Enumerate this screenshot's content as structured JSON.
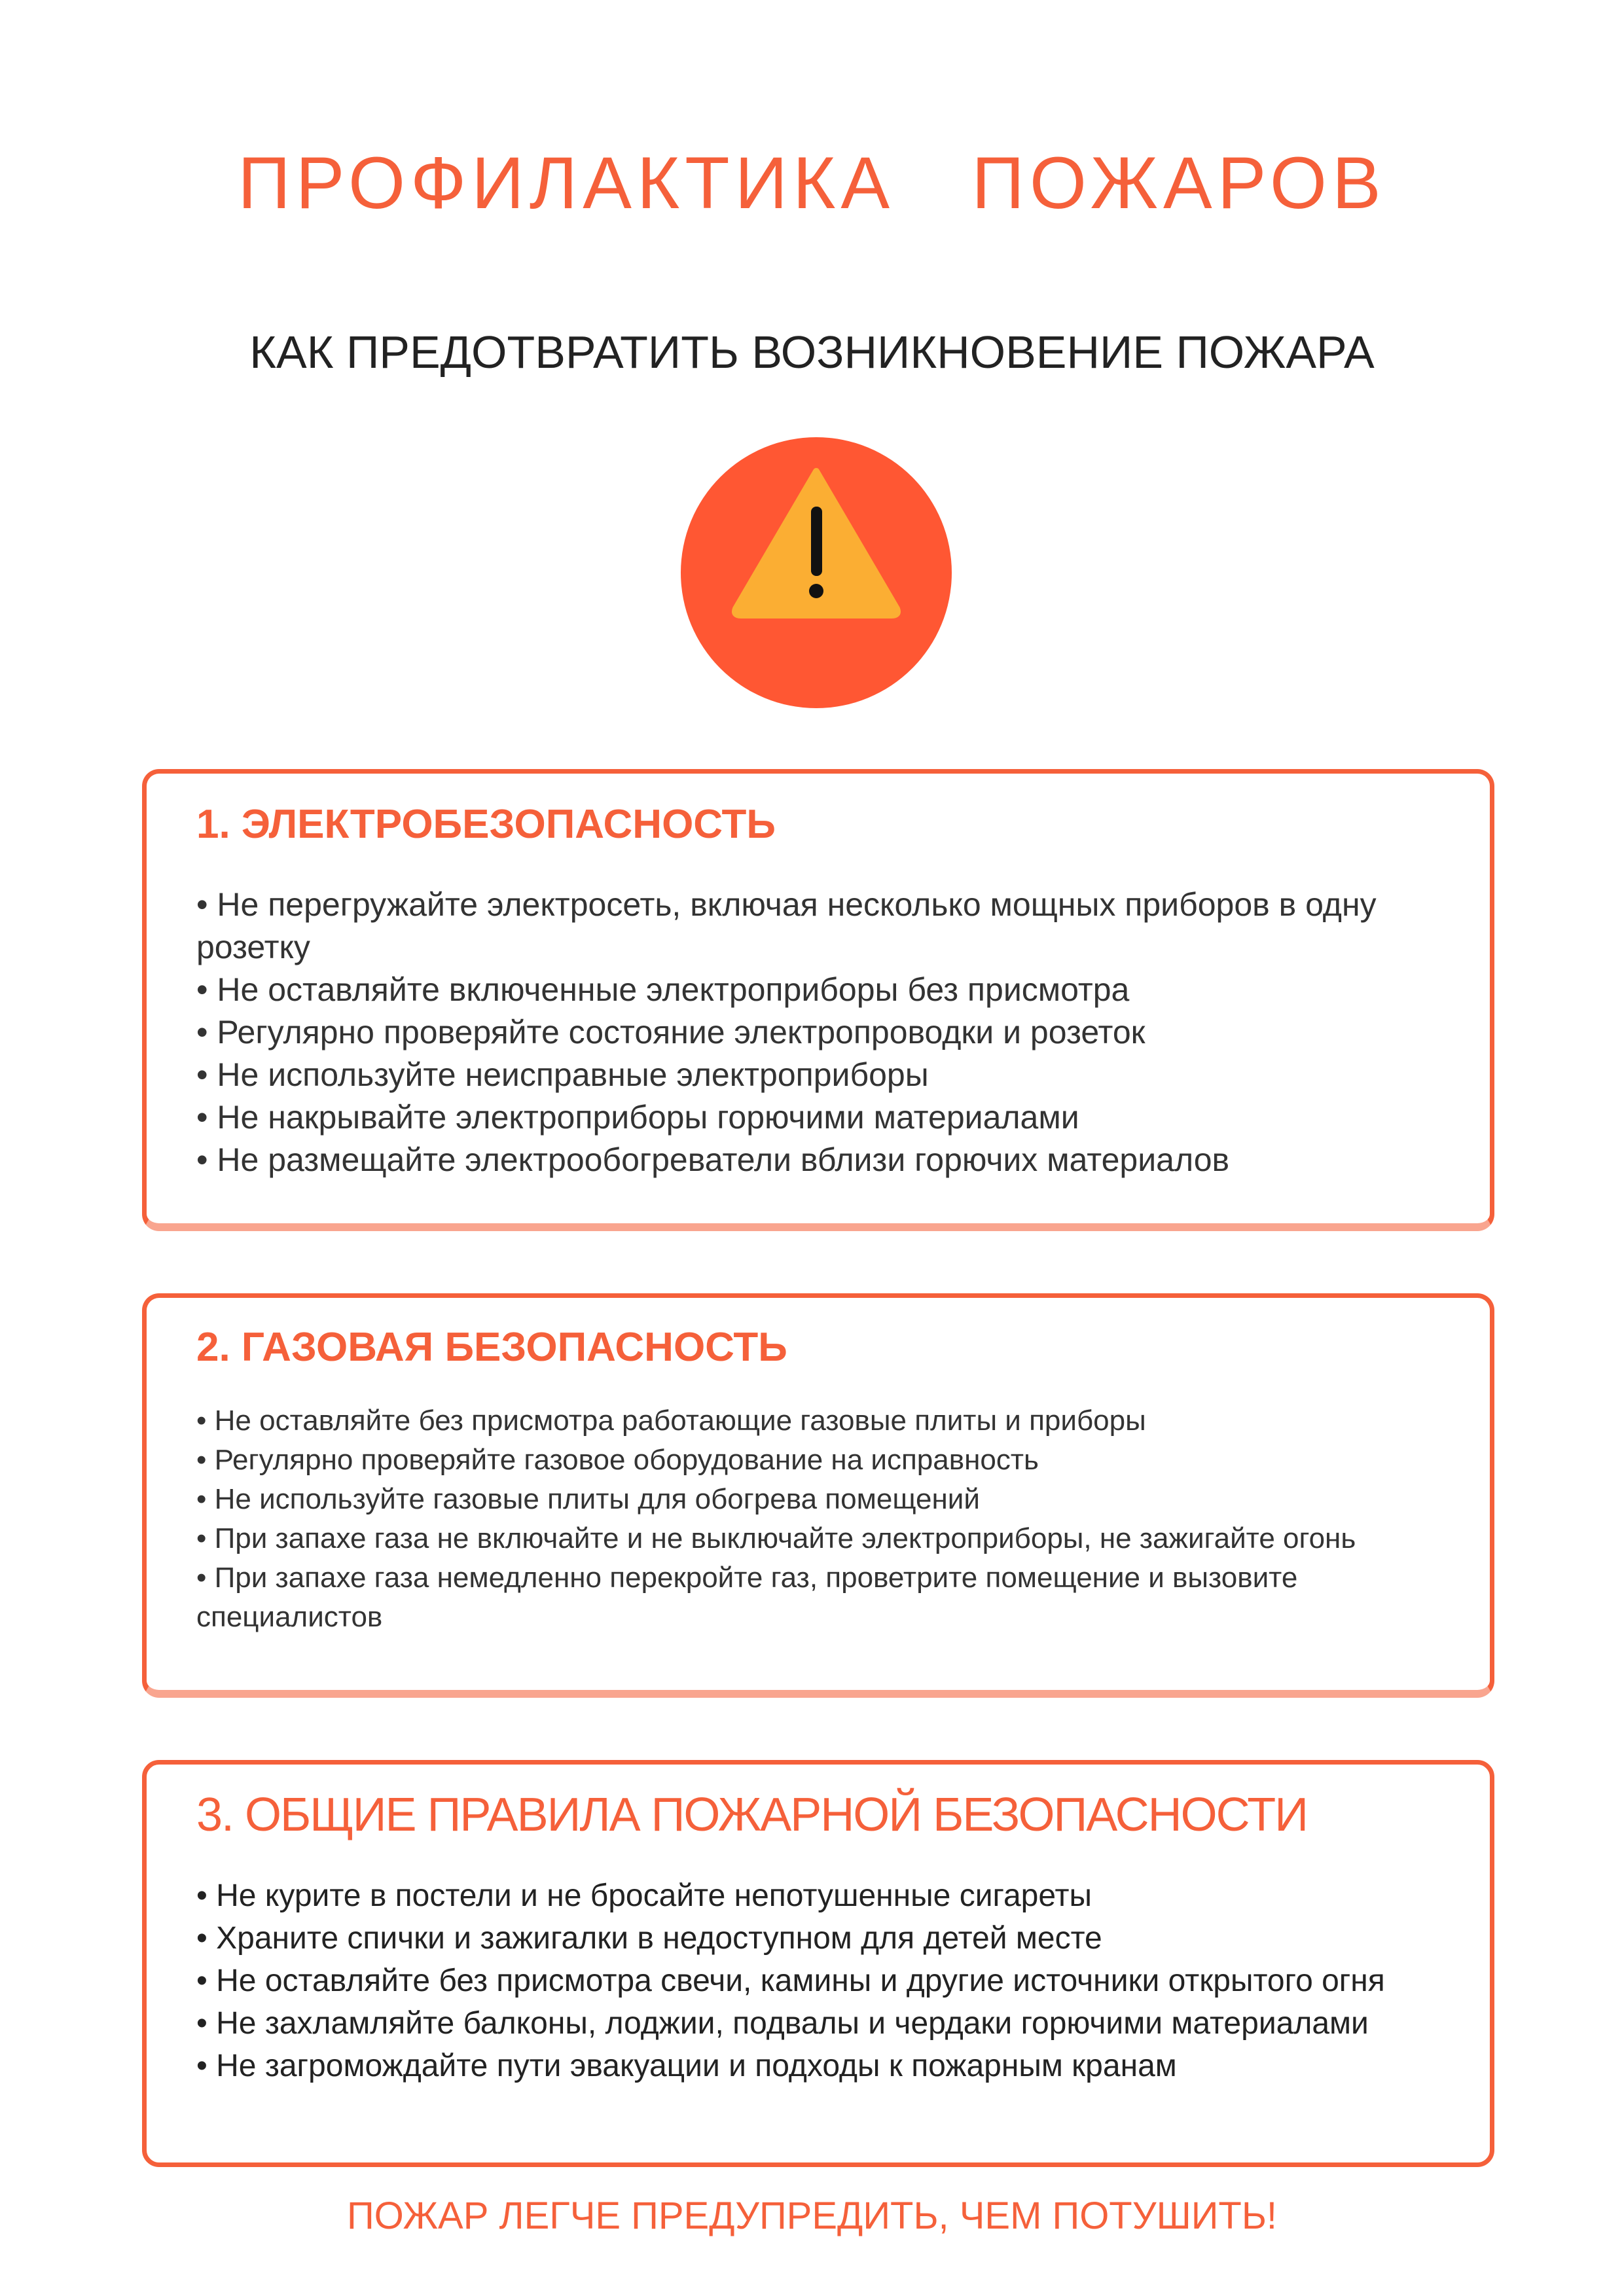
{
  "title": "ПРОФИЛАКТИКА   ПОЖАРОВ",
  "subtitle": "КАК ПРЕДОТВРАТИТЬ ВОЗНИКНОВЕНИЕ ПОЖАРА",
  "icon": "warning-icon",
  "colors": {
    "accent": "#F5603A",
    "circle": "#FF5733",
    "triangle": "#FBAE33"
  },
  "sections": [
    {
      "heading": "1. ЭЛЕКТРОБЕЗОПАСНОСТЬ",
      "items": [
        "• Не перегружайте электросеть, включая несколько мощных приборов в одну розетку",
        "• Не оставляйте включенные электроприборы без присмотра",
        "• Регулярно проверяйте состояние электропроводки и розеток",
        "• Не используйте неисправные электроприборы",
        "• Не накрывайте электроприборы горючими материалами",
        "• Не размещайте электрообогреватели вблизи горючих материалов"
      ]
    },
    {
      "heading": "2. ГАЗОВАЯ БЕЗОПАСНОСТЬ",
      "items": [
        "• Не оставляйте без присмотра работающие газовые плиты и приборы",
        "• Регулярно проверяйте газовое оборудование на исправность",
        "• Не используйте газовые плиты для обогрева помещений",
        "• При запахе газа не включайте и не выключайте электроприборы, не зажигайте огонь",
        "• При запахе газа немедленно перекройте газ, проветрите помещение и вызовите специалистов"
      ]
    },
    {
      "heading": "3. ОБЩИЕ ПРАВИЛА ПОЖАРНОЙ БЕЗОПАСНОСТИ",
      "items": [
        "• Не курите в постели и не бросайте непотушенные сигареты",
        "• Храните спички и зажигалки в недоступном для детей месте",
        "• Не оставляйте без присмотра свечи, камины и другие источники открытого огня",
        "• Не захламляйте балконы, лоджии, подвалы и чердаки горючими материалами",
        "• Не загромождайте пути эвакуации и подходы к пожарным кранам"
      ]
    }
  ],
  "footer": "ПОЖАР ЛЕГЧЕ ПРЕДУПРЕДИТЬ,  ЧЕМ ПОТУШИТЬ!"
}
